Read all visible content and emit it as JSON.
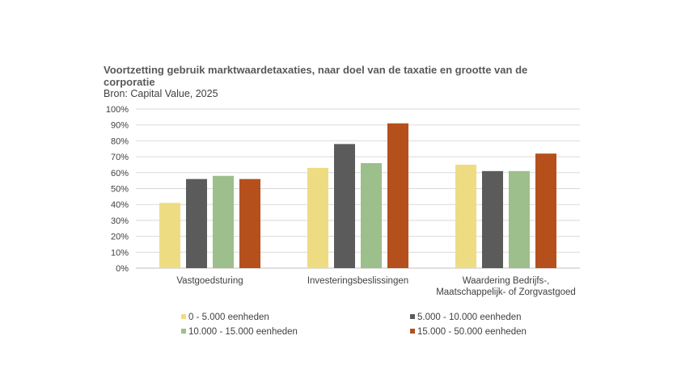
{
  "chart_data": {
    "type": "bar",
    "title": "Voortzetting gebruik marktwaardetaxaties, naar doel van de taxatie en grootte van de corporatie",
    "subtitle": "Bron: Capital Value, 2025",
    "categories": [
      [
        "Vastgoedsturing"
      ],
      [
        "Investeringsbeslissingen"
      ],
      [
        "Waardering Bedrijfs-,",
        "Maatschappelijk- of Zorgvastgoed"
      ]
    ],
    "series": [
      {
        "name": "0 - 5.000 eenheden",
        "color": "#EEDC82",
        "values": [
          41,
          63,
          65
        ]
      },
      {
        "name": "5.000 - 10.000 eenheden",
        "color": "#5B5B5B",
        "values": [
          56,
          78,
          61
        ]
      },
      {
        "name": "10.000 - 15.000 eenheden",
        "color": "#9DBF8B",
        "values": [
          58,
          66,
          61
        ]
      },
      {
        "name": "15.000 - 50.000 eenheden",
        "color": "#B5501C",
        "values": [
          56,
          91,
          72
        ]
      }
    ],
    "ylim": [
      0,
      100
    ],
    "yticks": [
      0,
      10,
      20,
      30,
      40,
      50,
      60,
      70,
      80,
      90,
      100
    ],
    "ytick_suffix": "%",
    "grid": true,
    "legend_position": "bottom"
  }
}
